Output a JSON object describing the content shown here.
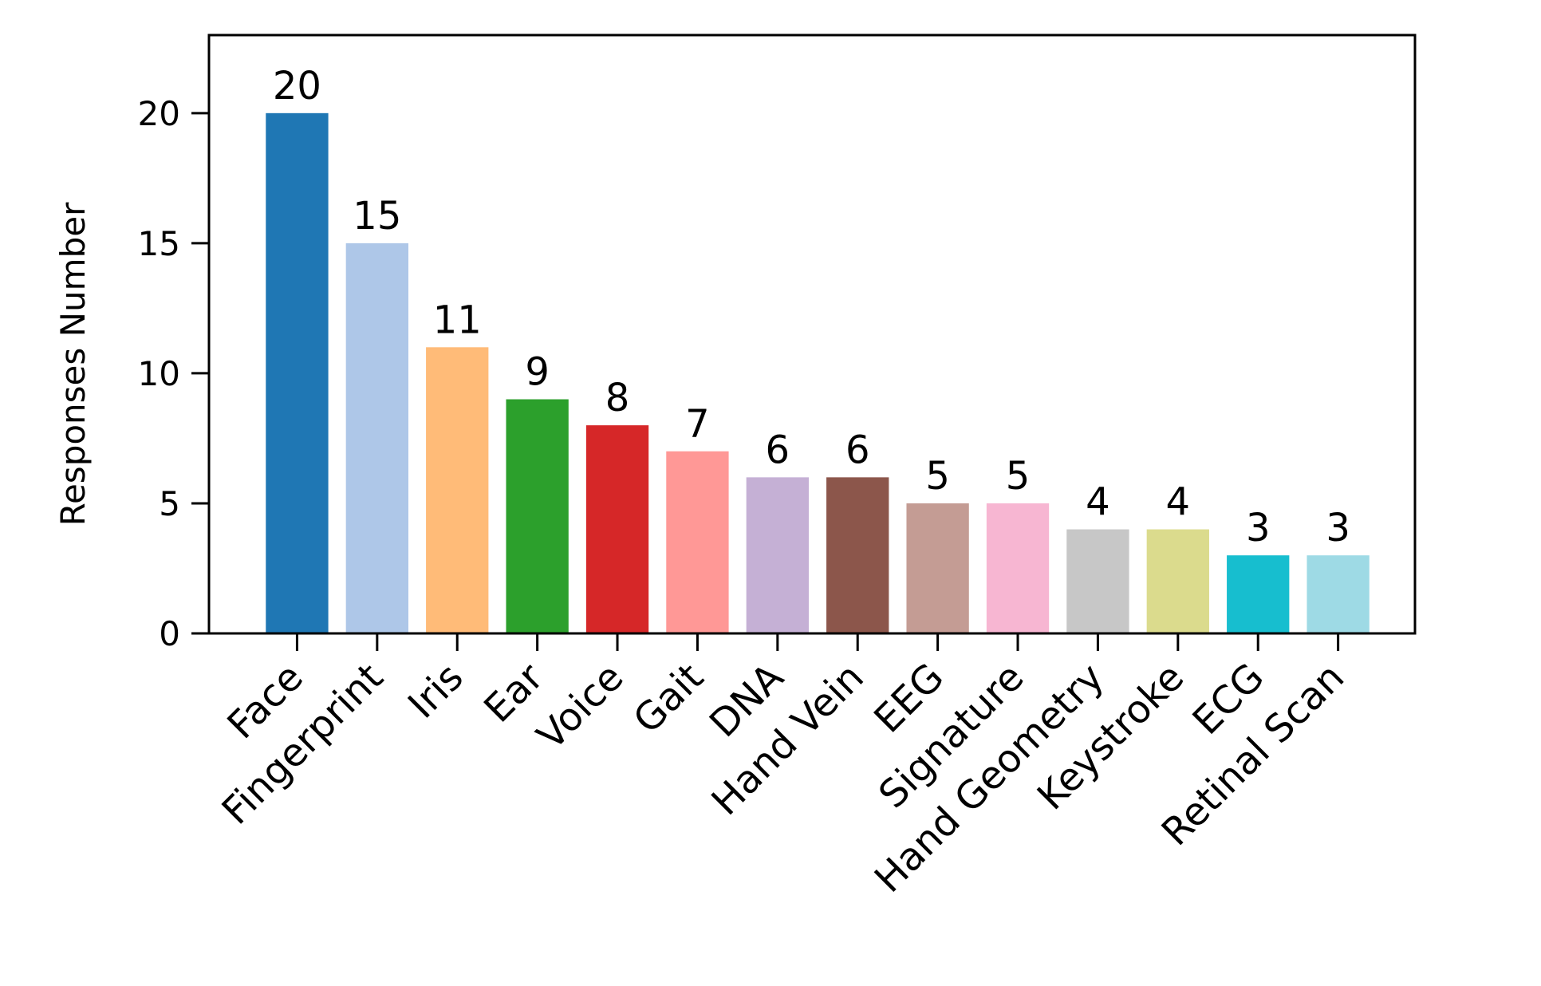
{
  "chart_data": {
    "type": "bar",
    "title": "",
    "xlabel": "",
    "ylabel": "Responses Number",
    "ylim": [
      0,
      23
    ],
    "yticks": [
      0,
      5,
      10,
      15,
      20
    ],
    "grid": false,
    "legend": "none",
    "categories": [
      "Face",
      "Fingerprint",
      "Iris",
      "Ear",
      "Voice",
      "Gait",
      "DNA",
      "Hand Vein",
      "EEG",
      "Signature",
      "Hand Geometry",
      "Keystroke",
      "ECG",
      "Retinal Scan"
    ],
    "values": [
      20,
      15,
      11,
      9,
      8,
      7,
      6,
      6,
      5,
      5,
      4,
      4,
      3,
      3
    ],
    "data_labels": [
      "20",
      "15",
      "11",
      "9",
      "8",
      "7",
      "6",
      "6",
      "5",
      "5",
      "4",
      "4",
      "3",
      "3"
    ],
    "colors": [
      "#1f77b4",
      "#aec7e8",
      "#ffbb78",
      "#2ca02c",
      "#d62728",
      "#ff9896",
      "#c5b0d5",
      "#8c564b",
      "#c49c94",
      "#f7b6d2",
      "#c7c7c7",
      "#dbdb8d",
      "#17becf",
      "#9edae5"
    ]
  }
}
